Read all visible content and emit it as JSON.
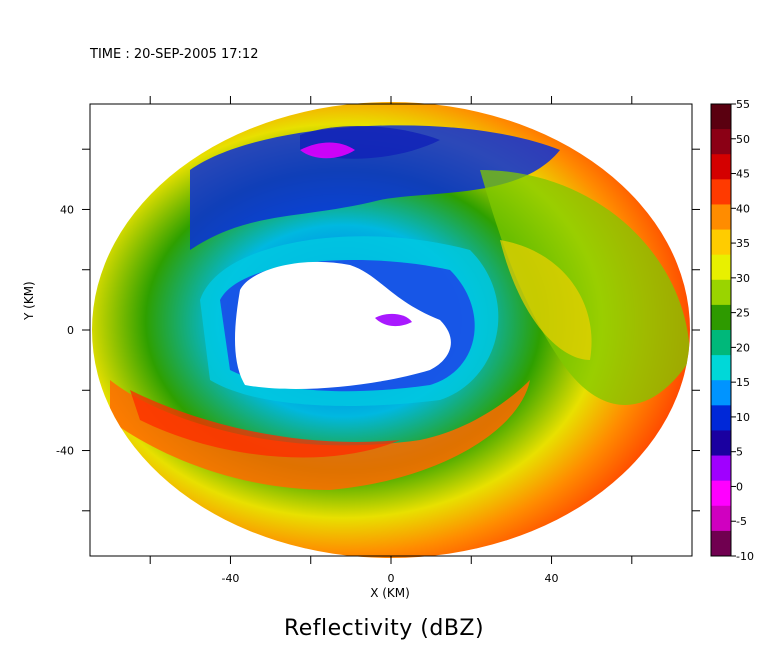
{
  "time_label": "TIME : 20-SEP-2005 17:12",
  "chart_data": {
    "type": "heatmap",
    "title": "Reflectivity (dBZ)",
    "xlabel": "X (KM)",
    "ylabel": "Y (KM)",
    "xlim": [
      -75,
      75
    ],
    "ylim": [
      -75,
      75
    ],
    "x_ticks": [
      -40,
      0,
      40
    ],
    "y_ticks": [
      -40,
      0,
      40
    ],
    "colorbar": {
      "min": -10,
      "max": 55,
      "ticks": [
        55,
        50,
        45,
        40,
        35,
        30,
        25,
        20,
        15,
        10,
        5,
        0,
        -5,
        -10
      ],
      "colors": [
        "#5a0010",
        "#8b0015",
        "#d40000",
        "#ff3a00",
        "#ff8c00",
        "#ffcc00",
        "#e8f000",
        "#9ad400",
        "#2e9a00",
        "#00b87a",
        "#00d8d8",
        "#0094ff",
        "#0028d8",
        "#1a00a0",
        "#a000ff",
        "#ff00ff",
        "#d000c0",
        "#700050"
      ]
    },
    "radar_range_km": 75,
    "grid": false,
    "description_regions": {
      "echo_free_center": "white eye region near center",
      "high_reflectivity_band": "southwest arc (40-50 dBZ)"
    }
  }
}
